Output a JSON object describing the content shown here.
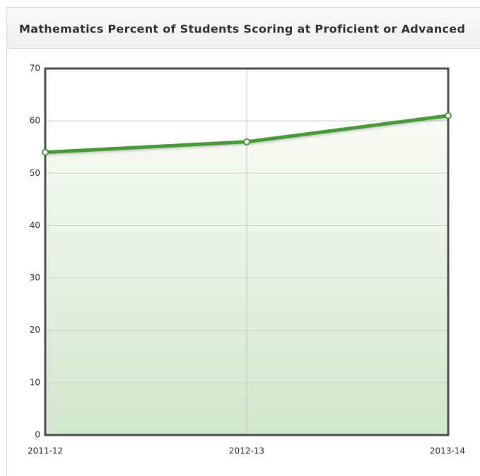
{
  "chart_data": {
    "type": "line",
    "title": "Mathematics Percent of Students Scoring at Proficient or Advanced",
    "categories": [
      "2011-12",
      "2012-13",
      "2013-14"
    ],
    "values": [
      54,
      56,
      61
    ],
    "color": "#4a9a3a",
    "area": true,
    "ylim": [
      0,
      70
    ],
    "yticks": [
      0,
      10,
      20,
      30,
      40,
      50,
      60,
      70
    ],
    "grid": true
  }
}
